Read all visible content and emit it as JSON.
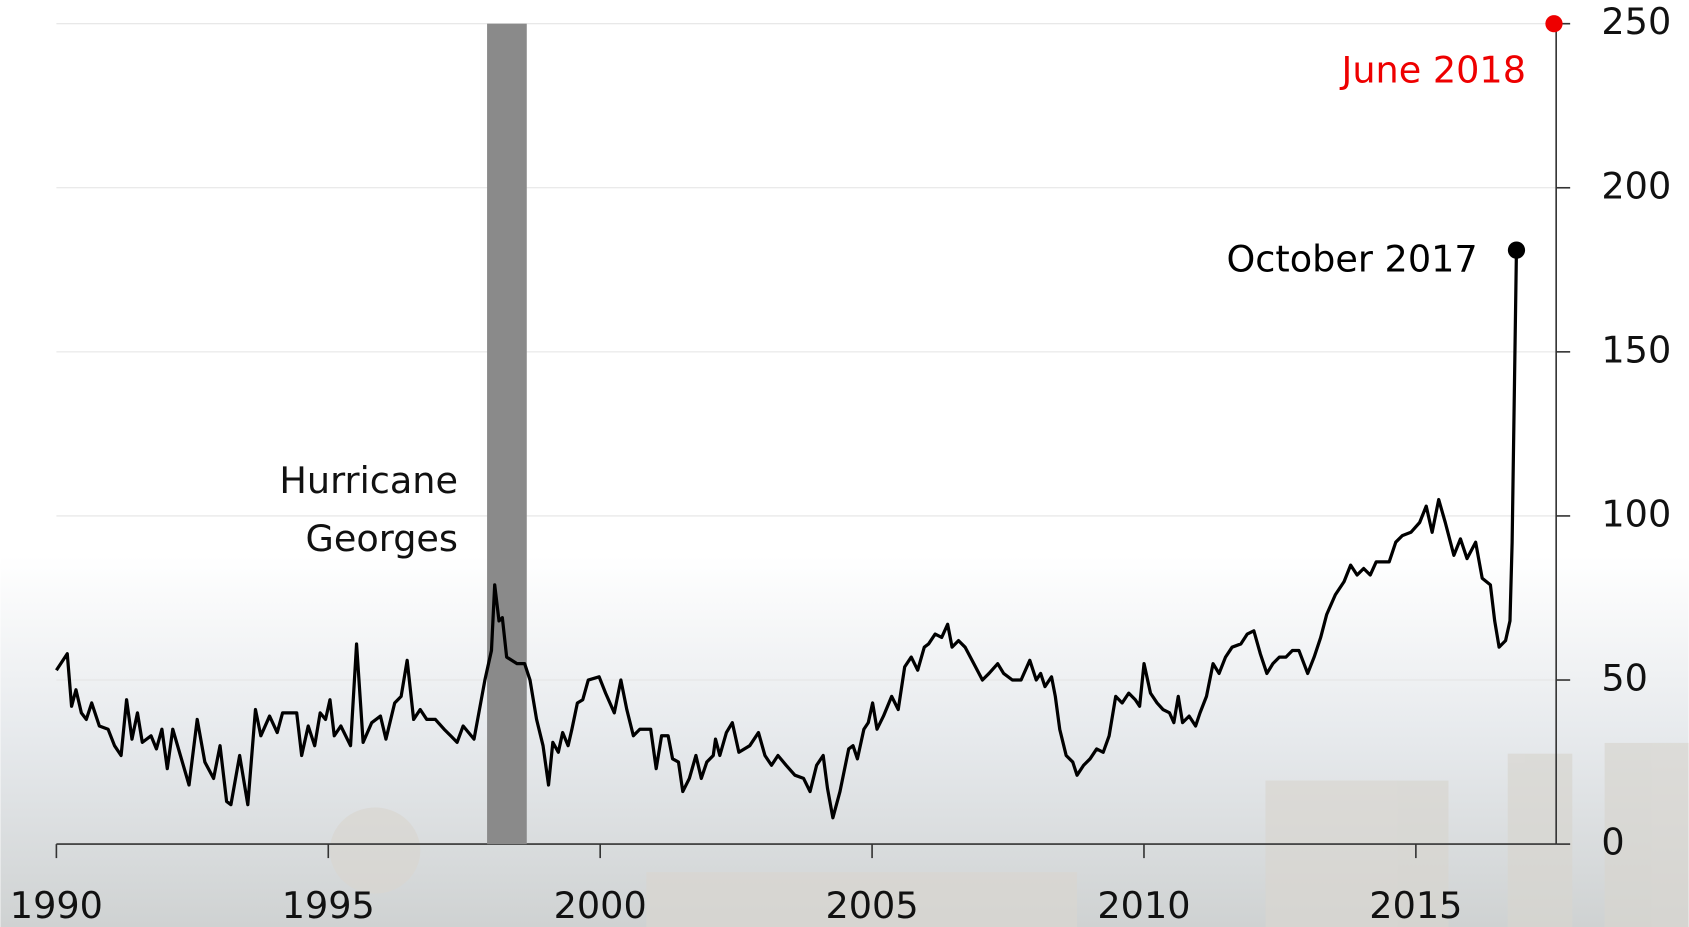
{
  "chart_data": {
    "type": "line",
    "x": [
      1990.0,
      1990.2,
      1990.28,
      1990.36,
      1990.46,
      1990.55,
      1990.65,
      1990.79,
      1990.95,
      1991.07,
      1991.19,
      1991.29,
      1991.39,
      1991.49,
      1991.58,
      1991.74,
      1991.84,
      1991.94,
      1992.04,
      1992.14,
      1992.28,
      1992.44,
      1992.59,
      1992.73,
      1992.89,
      1993.01,
      1993.13,
      1993.21,
      1993.37,
      1993.52,
      1993.66,
      1993.76,
      1993.92,
      1994.06,
      1994.16,
      1994.42,
      1994.51,
      1994.63,
      1994.75,
      1994.85,
      1994.95,
      1995.03,
      1995.11,
      1995.23,
      1995.41,
      1995.52,
      1995.64,
      1995.8,
      1995.96,
      1996.06,
      1996.22,
      1996.34,
      1996.45,
      1996.57,
      1996.69,
      1996.81,
      1996.97,
      1997.13,
      1997.25,
      1997.37,
      1997.48,
      1997.68,
      1997.88,
      1998.0,
      1998.06,
      1998.14,
      1998.2,
      1998.28,
      1998.47,
      1998.61,
      1998.71,
      1998.83,
      1998.95,
      1999.05,
      1999.13,
      1999.23,
      1999.31,
      1999.41,
      1999.48,
      1999.58,
      1999.68,
      1999.78,
      1999.98,
      2000.1,
      2000.26,
      2000.38,
      2000.49,
      2000.61,
      2000.73,
      2000.93,
      2001.03,
      2001.13,
      2001.25,
      2001.33,
      2001.44,
      2001.52,
      2001.64,
      2001.76,
      2001.86,
      2001.96,
      2002.08,
      2002.12,
      2002.2,
      2002.32,
      2002.43,
      2002.55,
      2002.75,
      2002.91,
      2003.03,
      2003.15,
      2003.27,
      2003.42,
      2003.58,
      2003.74,
      2003.86,
      2003.98,
      2004.1,
      2004.18,
      2004.28,
      2004.41,
      2004.57,
      2004.65,
      2004.73,
      2004.85,
      2004.93,
      2005.01,
      2005.09,
      2005.21,
      2005.36,
      2005.48,
      2005.6,
      2005.72,
      2005.84,
      2005.96,
      2006.04,
      2006.16,
      2006.28,
      2006.39,
      2006.47,
      2006.59,
      2006.71,
      2006.87,
      2007.03,
      2007.15,
      2007.31,
      2007.42,
      2007.58,
      2007.74,
      2007.9,
      2008.02,
      2008.1,
      2008.18,
      2008.3,
      2008.37,
      2008.45,
      2008.57,
      2008.69,
      2008.77,
      2008.89,
      2009.01,
      2009.13,
      2009.25,
      2009.36,
      2009.48,
      2009.6,
      2009.72,
      2009.84,
      2009.92,
      2010.0,
      2010.12,
      2010.24,
      2010.35,
      2010.47,
      2010.55,
      2010.63,
      2010.71,
      2010.83,
      2010.95,
      2011.03,
      2011.15,
      2011.27,
      2011.38,
      2011.5,
      2011.62,
      2011.78,
      2011.9,
      2012.02,
      2012.14,
      2012.26,
      2012.37,
      2012.49,
      2012.61,
      2012.73,
      2012.85,
      2013.01,
      2013.13,
      2013.25,
      2013.36,
      2013.52,
      2013.68,
      2013.8,
      2013.92,
      2014.04,
      2014.16,
      2014.27,
      2014.51,
      2014.63,
      2014.75,
      2014.91,
      2015.07,
      2015.19,
      2015.3,
      2015.42,
      2015.54,
      2015.7,
      2015.82,
      2015.94,
      2016.1,
      2016.22,
      2016.37,
      2016.45,
      2016.53,
      2016.65,
      2016.73,
      2016.77,
      2016.85
    ],
    "series": [
      {
        "color": "#000000",
        "values": [
          53,
          58,
          42,
          47,
          40,
          38,
          43,
          36,
          35,
          30,
          27,
          44,
          32,
          40,
          31,
          33,
          29,
          35,
          23,
          35,
          27,
          18,
          38,
          25,
          20,
          30,
          13,
          12,
          27,
          12,
          41,
          33,
          39,
          34,
          40,
          40,
          27,
          36,
          30,
          40,
          38,
          44,
          33,
          36,
          30,
          61,
          31,
          37,
          39,
          32,
          43,
          45,
          56,
          38,
          41,
          38,
          38,
          35,
          33,
          31,
          36,
          32,
          50,
          59,
          79,
          68,
          69,
          57,
          55,
          55,
          50,
          38,
          30,
          18,
          31,
          28,
          34,
          30,
          35,
          43,
          44,
          50,
          51,
          46,
          40,
          50,
          41,
          33,
          35,
          35,
          23,
          33,
          33,
          26,
          25,
          16,
          20,
          27,
          20,
          25,
          27,
          32,
          27,
          34,
          37,
          28,
          30,
          34,
          27,
          24,
          27,
          24,
          21,
          20,
          16,
          24,
          27,
          17,
          8,
          16,
          29,
          30,
          26,
          35,
          37,
          43,
          35,
          39,
          45,
          41,
          54,
          57,
          53,
          60,
          61,
          64,
          63,
          67,
          60,
          62,
          60,
          55,
          50,
          52,
          55,
          52,
          50,
          50,
          56,
          50,
          52,
          48,
          51,
          45,
          35,
          27,
          25,
          21,
          24,
          26,
          29,
          28,
          33,
          45,
          43,
          46,
          44,
          42,
          55,
          46,
          43,
          41,
          40,
          37,
          45,
          37,
          39,
          36,
          40,
          45,
          55,
          52,
          57,
          60,
          61,
          64,
          65,
          58,
          52,
          55,
          57,
          57,
          59,
          59,
          52,
          57,
          63,
          70,
          76,
          80,
          85,
          82,
          84,
          82,
          86,
          86,
          92,
          94,
          95,
          98,
          103,
          95,
          105,
          98,
          88,
          93,
          87,
          92,
          81,
          79,
          68,
          60,
          62,
          68,
          92,
          181
        ]
      }
    ],
    "xlim": [
      1990,
      2017.58
    ],
    "ylim": [
      0,
      250
    ],
    "xticks": [
      1990,
      1995,
      2000,
      2005,
      2010,
      2015
    ],
    "yticks": [
      0,
      50,
      100,
      150,
      200,
      250
    ],
    "grid": true,
    "shaded_span": [
      1997.92,
      1998.65
    ],
    "shaded_label": [
      "Hurricane",
      "Georges"
    ],
    "markers": [
      {
        "label": "October 2017",
        "x": 2016.85,
        "y": 181,
        "color": "#000000"
      },
      {
        "label": "June 2018",
        "x": 2017.54,
        "y": 250,
        "color": "#ee0000"
      }
    ]
  }
}
